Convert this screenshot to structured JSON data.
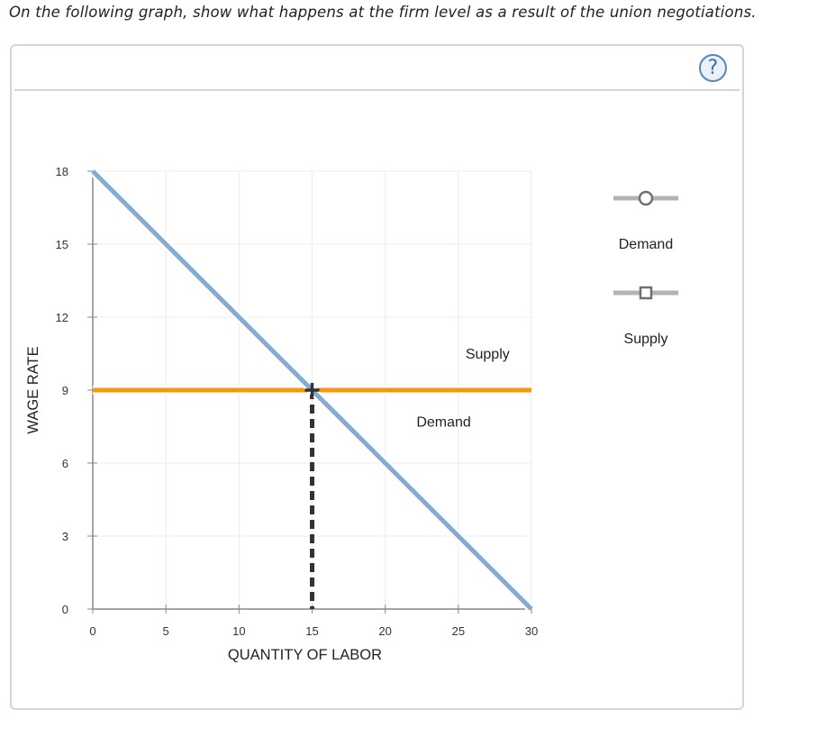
{
  "prompt": "On the following graph, show what happens at the firm level as a result of the union negotiations.",
  "help_icon": "question-mark-icon",
  "help_symbol": "?",
  "chart_data": {
    "type": "line",
    "xlabel": "QUANTITY OF LABOR",
    "ylabel": "WAGE RATE",
    "xlim": [
      0,
      30
    ],
    "ylim": [
      0,
      18
    ],
    "x_ticks": [
      0,
      5,
      10,
      15,
      20,
      25,
      30
    ],
    "y_ticks": [
      0,
      3,
      6,
      9,
      12,
      15,
      18
    ],
    "grid": true,
    "series": [
      {
        "name": "Demand",
        "color": "#85acd0",
        "points": [
          [
            0,
            18
          ],
          [
            30,
            0
          ]
        ],
        "label_at": [
          24,
          7.5
        ]
      },
      {
        "name": "Supply",
        "color": "#f4980f",
        "points": [
          [
            0,
            9
          ],
          [
            30,
            9
          ]
        ],
        "label_at": [
          27,
          10.3
        ]
      }
    ],
    "equilibrium": {
      "x": 15,
      "y": 9,
      "marker": "plus",
      "dropline_color": "#333333"
    }
  },
  "legend": {
    "items": [
      {
        "label": "Demand",
        "icon": "circle-marker-icon",
        "line_color": "#b3b3b3",
        "marker_color": "#707070"
      },
      {
        "label": "Supply",
        "icon": "square-marker-icon",
        "line_color": "#b3b3b3",
        "marker_color": "#707070"
      }
    ]
  }
}
